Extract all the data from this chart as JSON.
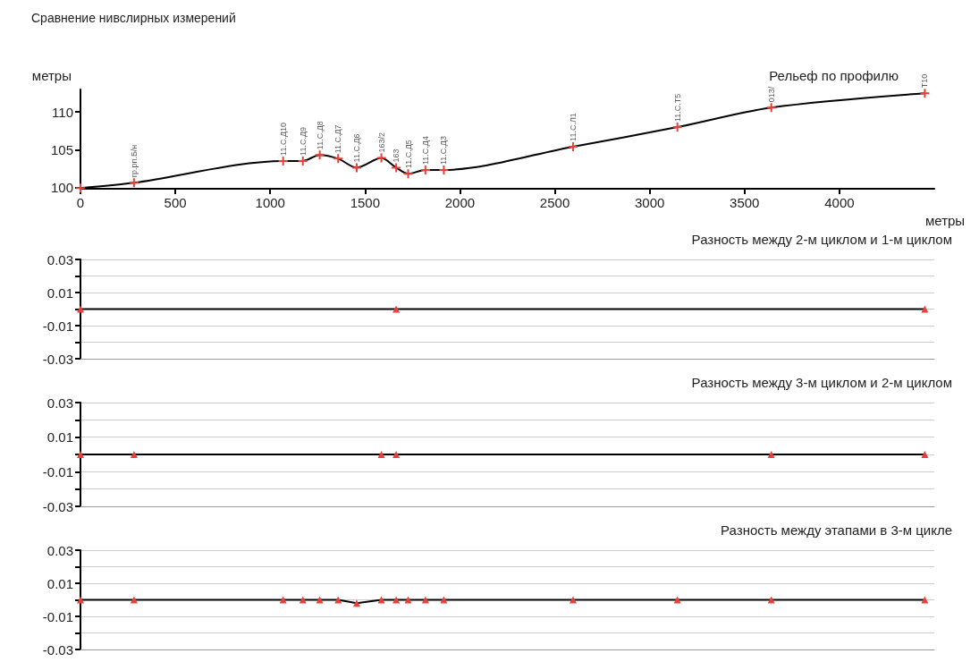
{
  "chart_data": [
    {
      "type": "line",
      "title": "Сравнение нивслирных измерений",
      "subtitle": "Рельеф по профилю",
      "xlabel": "метры",
      "ylabel": "метры",
      "xlim": [
        0,
        4500
      ],
      "ylim": [
        99.8,
        113
      ],
      "xticks": [
        0,
        500,
        1000,
        1500,
        2000,
        2500,
        3000,
        3500,
        4000
      ],
      "yticks": [
        100,
        105,
        110
      ],
      "marker": "cross",
      "series": [
        {
          "color": "#000000",
          "colors": [
            "#e8413c",
            "#e8413c",
            "#e8413c",
            "#e8413c",
            "#e8413c",
            "#e8413c",
            "#e8413c",
            "#e8413c",
            "#e8413c",
            "#e8413c",
            "#e8413c",
            "#e8413c",
            "#e8413c",
            "#e8413c",
            "#e8413c",
            "#e8413c"
          ],
          "x": [
            0,
            282,
            1068,
            1172,
            1261,
            1358,
            1456,
            1586,
            1664,
            1727,
            1818,
            1915,
            2596,
            3146,
            3641,
            4450
          ],
          "values": [
            99.9,
            100.6,
            103.5,
            103.5,
            104.3,
            103.8,
            102.6,
            103.9,
            102.6,
            101.8,
            102.3,
            102.3,
            105.4,
            108.0,
            110.6,
            112.5
          ]
        }
      ],
      "annotations": [
        {
          "text": "гр.рп.Б/н",
          "x": 282,
          "y": 100.6
        },
        {
          "text": "11.С.Д10",
          "x": 1068,
          "y": 103.5
        },
        {
          "text": "11.С.Д9",
          "x": 1172,
          "y": 103.5
        },
        {
          "text": "11.С.Д8",
          "x": 1261,
          "y": 104.3
        },
        {
          "text": "11.С.Д7",
          "x": 1358,
          "y": 103.8
        },
        {
          "text": "11.С.Д6",
          "x": 1456,
          "y": 102.6
        },
        {
          "text": "163/2",
          "x": 1586,
          "y": 103.9
        },
        {
          "text": "163",
          "x": 1664,
          "y": 102.6
        },
        {
          "text": "11.С.Д5",
          "x": 1727,
          "y": 101.8
        },
        {
          "text": "11.С.Д4",
          "x": 1818,
          "y": 102.3
        },
        {
          "text": "11.С.Д3",
          "x": 1915,
          "y": 102.3
        },
        {
          "text": "11.С.Л1",
          "x": 2596,
          "y": 105.4
        },
        {
          "text": "11.С.Т5",
          "x": 3146,
          "y": 108.0
        },
        {
          "text": "013/",
          "x": 3641,
          "y": 110.6
        },
        {
          "text": "Т10",
          "x": 4450,
          "y": 112.5
        }
      ]
    },
    {
      "type": "line",
      "title": "Разность между 2-м циклом и 1-м циклом",
      "xlim": [
        0,
        4500
      ],
      "ylim": [
        -0.03,
        0.03
      ],
      "yticks": [
        0.03,
        {
          "value": 0.02,
          "label": null
        },
        0.01,
        {
          "value": 0,
          "label": null
        },
        -0.01,
        {
          "value": -0.02,
          "label": null
        },
        -0.03
      ],
      "grid": "y",
      "tick_labels": "y",
      "marker": "triangle",
      "series": [
        {
          "color": "#000000",
          "colors": [
            "#e8413c",
            "#e8413c",
            "#e8413c"
          ],
          "x": [
            0,
            1664,
            4450
          ],
          "values": [
            0,
            0,
            0
          ]
        }
      ]
    },
    {
      "type": "line",
      "title": "Разность между 3-м циклом и 2-м циклом",
      "xlim": [
        0,
        4500
      ],
      "ylim": [
        -0.03,
        0.03
      ],
      "yticks": [
        0.03,
        {
          "value": 0.02,
          "label": null
        },
        0.01,
        {
          "value": 0,
          "label": null
        },
        -0.01,
        {
          "value": -0.02,
          "label": null
        },
        -0.03
      ],
      "grid": "y",
      "tick_labels": "y",
      "marker": "triangle",
      "series": [
        {
          "color": "#000000",
          "colors": [
            "#e8413c",
            "#e8413c",
            "#e8413c",
            "#e8413c",
            "#e8413c",
            "#e8413c"
          ],
          "x": [
            0,
            282,
            1586,
            1664,
            3641,
            4450
          ],
          "values": [
            0,
            0,
            0,
            0,
            0,
            0
          ]
        }
      ]
    },
    {
      "type": "line",
      "title": "Разность между этапами в 3-м цикле",
      "xlim": [
        0,
        4500
      ],
      "ylim": [
        -0.03,
        0.03
      ],
      "yticks": [
        0.03,
        {
          "value": 0.02,
          "label": null
        },
        0.01,
        {
          "value": 0,
          "label": null
        },
        -0.01,
        {
          "value": -0.02,
          "label": null
        },
        -0.03
      ],
      "grid": "y",
      "tick_labels": "y",
      "marker": "triangle",
      "series": [
        {
          "color": "#000000",
          "colors": [
            "#e8413c",
            "#e8413c",
            "#e8413c",
            "#e8413c",
            "#e8413c",
            "#e8413c",
            "#e8413c",
            "#e8413c",
            "#e8413c",
            "#e8413c",
            "#e8413c",
            "#e8413c",
            "#e8413c",
            "#e8413c",
            "#e8413c",
            "#e8413c"
          ],
          "x": [
            0,
            282,
            1068,
            1172,
            1261,
            1358,
            1456,
            1586,
            1664,
            1727,
            1818,
            1915,
            2596,
            3146,
            3641,
            4450
          ],
          "values": [
            0,
            0,
            0,
            0,
            0,
            0,
            -0.002,
            0,
            0,
            0,
            0,
            0,
            0,
            0,
            0,
            0
          ]
        }
      ]
    }
  ]
}
